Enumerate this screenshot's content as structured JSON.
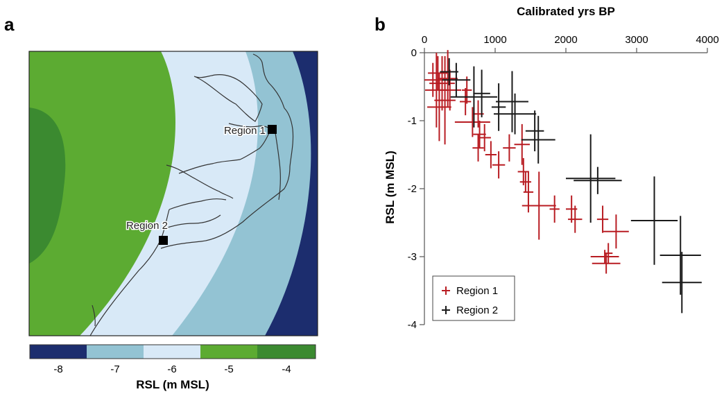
{
  "colors": {
    "band_m8": "#1c2d6e",
    "band_m7": "#93c3d3",
    "band_m6": "#d8e9f7",
    "band_m5": "#5cab32",
    "band_m4": "#3b8a30",
    "coast": "#333333",
    "region1": "#b81c22",
    "region2": "#1a1a1a"
  },
  "panel_a": {
    "letter": "a",
    "regions": [
      {
        "label": "Region 1"
      },
      {
        "label": "Region 2"
      }
    ],
    "colorbar": {
      "ticks": [
        "-8",
        "-7",
        "-6",
        "-5",
        "-4"
      ],
      "label": "RSL (m MSL)"
    }
  },
  "chart_data": {
    "type": "scatter",
    "panel_letter": "b",
    "xlabel": "Calibrated yrs BP",
    "ylabel": "RSL (m MSL)",
    "xlim": [
      0,
      4000
    ],
    "ylim": [
      -4,
      0
    ],
    "x_ticks": [
      0,
      1000,
      2000,
      3000,
      4000
    ],
    "y_ticks": [
      0,
      -1,
      -2,
      -3,
      -4
    ],
    "x_axis_position": "top",
    "grid": false,
    "legend_position": "bottom-left",
    "series": [
      {
        "name": "Region 1",
        "color": "#b81c22",
        "points": [
          {
            "x": 120,
            "y": -0.4,
            "xerr": 120,
            "yerr": 0.25
          },
          {
            "x": 170,
            "y": -0.55,
            "xerr": 160,
            "yerr": 0.55
          },
          {
            "x": 190,
            "y": -0.3,
            "xerr": 140,
            "yerr": 0.25
          },
          {
            "x": 210,
            "y": -0.8,
            "xerr": 170,
            "yerr": 0.5
          },
          {
            "x": 250,
            "y": -0.45,
            "xerr": 180,
            "yerr": 0.4
          },
          {
            "x": 290,
            "y": -0.7,
            "xerr": 150,
            "yerr": 0.65
          },
          {
            "x": 330,
            "y": -0.38,
            "xerr": 140,
            "yerr": 0.42
          },
          {
            "x": 360,
            "y": -0.55,
            "xerr": 160,
            "yerr": 0.3
          },
          {
            "x": 580,
            "y": -0.72,
            "xerr": 80,
            "yerr": 0.2
          },
          {
            "x": 600,
            "y": -0.55,
            "xerr": 70,
            "yerr": 0.2
          },
          {
            "x": 680,
            "y": -1.02,
            "xerr": 250,
            "yerr": 0.22
          },
          {
            "x": 760,
            "y": -0.9,
            "xerr": 80,
            "yerr": 0.2
          },
          {
            "x": 760,
            "y": -1.4,
            "xerr": 80,
            "yerr": 0.2
          },
          {
            "x": 780,
            "y": -1.2,
            "xerr": 90,
            "yerr": 0.2
          },
          {
            "x": 850,
            "y": -1.25,
            "xerr": 90,
            "yerr": 0.2
          },
          {
            "x": 940,
            "y": -1.5,
            "xerr": 80,
            "yerr": 0.2
          },
          {
            "x": 1050,
            "y": -1.65,
            "xerr": 90,
            "yerr": 0.2
          },
          {
            "x": 1200,
            "y": -1.4,
            "xerr": 90,
            "yerr": 0.2
          },
          {
            "x": 1380,
            "y": -1.35,
            "xerr": 110,
            "yerr": 0.3
          },
          {
            "x": 1400,
            "y": -1.75,
            "xerr": 80,
            "yerr": 0.2
          },
          {
            "x": 1430,
            "y": -1.9,
            "xerr": 80,
            "yerr": 0.15
          },
          {
            "x": 1470,
            "y": -2.05,
            "xerr": 70,
            "yerr": 0.3
          },
          {
            "x": 1620,
            "y": -2.25,
            "xerr": 240,
            "yerr": 0.5
          },
          {
            "x": 1840,
            "y": -2.3,
            "xerr": 70,
            "yerr": 0.2
          },
          {
            "x": 2080,
            "y": -2.3,
            "xerr": 80,
            "yerr": 0.2
          },
          {
            "x": 2130,
            "y": -2.45,
            "xerr": 100,
            "yerr": 0.2
          },
          {
            "x": 2520,
            "y": -2.45,
            "xerr": 80,
            "yerr": 0.2
          },
          {
            "x": 2550,
            "y": -3.0,
            "xerr": 200,
            "yerr": 0.1
          },
          {
            "x": 2570,
            "y": -3.1,
            "xerr": 200,
            "yerr": 0.15
          },
          {
            "x": 2600,
            "y": -2.95,
            "xerr": 60,
            "yerr": 0.15
          },
          {
            "x": 2710,
            "y": -2.63,
            "xerr": 180,
            "yerr": 0.25
          }
        ]
      },
      {
        "name": "Region 2",
        "color": "#1a1a1a",
        "points": [
          {
            "x": 350,
            "y": -0.28,
            "xerr": 130,
            "yerr": 0.2
          },
          {
            "x": 450,
            "y": -0.4,
            "xerr": 200,
            "yerr": 0.25
          },
          {
            "x": 700,
            "y": -0.65,
            "xerr": 330,
            "yerr": 0.45
          },
          {
            "x": 810,
            "y": -0.6,
            "xerr": 120,
            "yerr": 0.35
          },
          {
            "x": 1050,
            "y": -0.8,
            "xerr": 100,
            "yerr": 0.35
          },
          {
            "x": 1240,
            "y": -0.72,
            "xerr": 230,
            "yerr": 0.45
          },
          {
            "x": 1280,
            "y": -0.9,
            "xerr": 300,
            "yerr": 0.3
          },
          {
            "x": 1560,
            "y": -1.15,
            "xerr": 130,
            "yerr": 0.3
          },
          {
            "x": 1610,
            "y": -1.28,
            "xerr": 240,
            "yerr": 0.35
          },
          {
            "x": 2350,
            "y": -1.85,
            "xerr": 350,
            "yerr": 0.65
          },
          {
            "x": 2450,
            "y": -1.88,
            "xerr": 340,
            "yerr": 0.2
          },
          {
            "x": 3250,
            "y": -2.47,
            "xerr": 330,
            "yerr": 0.65
          },
          {
            "x": 3620,
            "y": -2.98,
            "xerr": 290,
            "yerr": 0.58
          },
          {
            "x": 3640,
            "y": -3.38,
            "xerr": 280,
            "yerr": 0.45
          }
        ]
      }
    ]
  }
}
